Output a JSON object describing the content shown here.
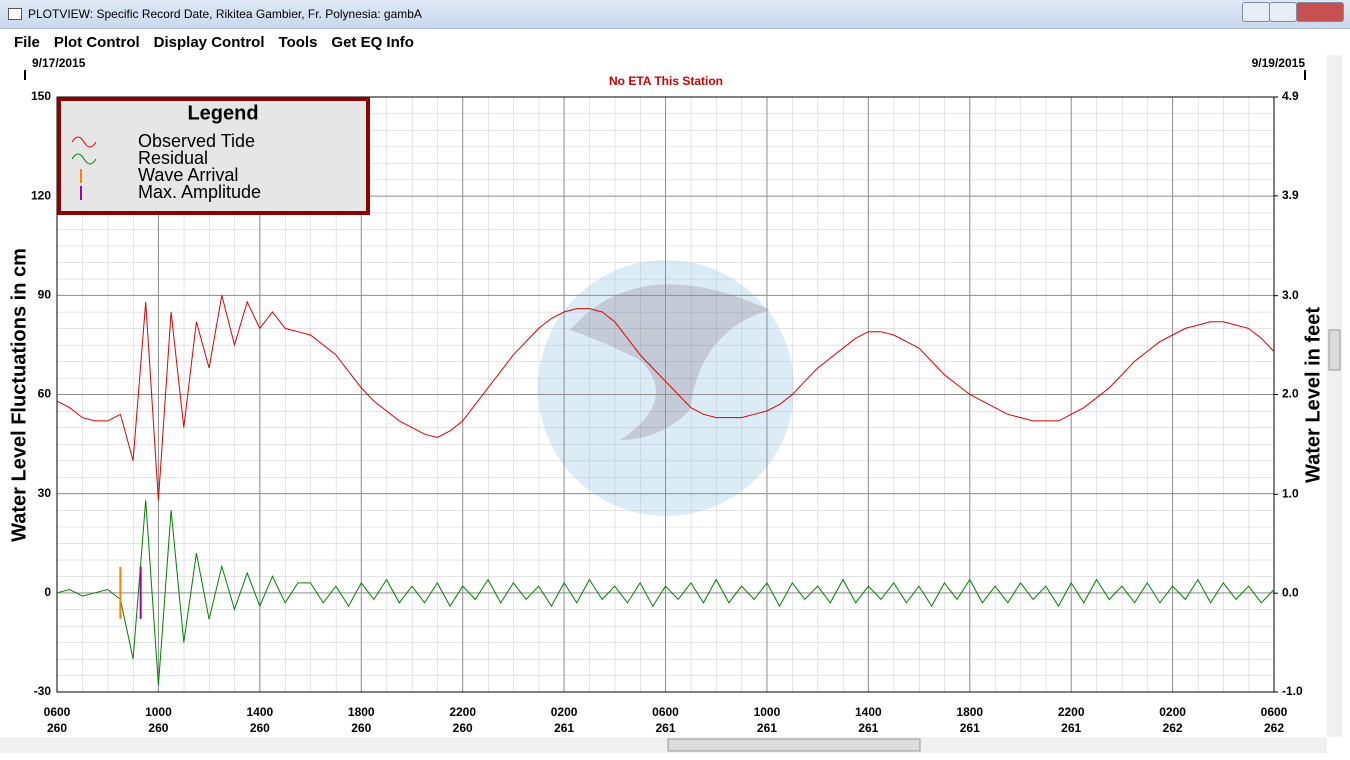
{
  "window": {
    "title": "PLOTVIEW: Specific Record Date, Rikitea Gambier, Fr. Polynesia: gambA",
    "menu": [
      "File",
      "Plot Control",
      "Display Control",
      "Tools",
      "Get EQ Info"
    ]
  },
  "chart_data": {
    "type": "line",
    "start_date": "9/17/2015",
    "end_date": "9/19/2015",
    "annotation": "No ETA This Station",
    "legend_title": "Legend",
    "ylabel": "Water Level Fluctuations in cm",
    "y2label": "Water Level in feet",
    "xlim": [
      0,
      48
    ],
    "xticks": [
      {
        "value": 0,
        "label": "0600",
        "sublabel": "260"
      },
      {
        "value": 4,
        "label": "1000",
        "sublabel": "260"
      },
      {
        "value": 8,
        "label": "1400",
        "sublabel": "260"
      },
      {
        "value": 12,
        "label": "1800",
        "sublabel": "260"
      },
      {
        "value": 16,
        "label": "2200",
        "sublabel": "260"
      },
      {
        "value": 20,
        "label": "0200",
        "sublabel": "261"
      },
      {
        "value": 24,
        "label": "0600",
        "sublabel": "261"
      },
      {
        "value": 28,
        "label": "1000",
        "sublabel": "261"
      },
      {
        "value": 32,
        "label": "1400",
        "sublabel": "261"
      },
      {
        "value": 36,
        "label": "1800",
        "sublabel": "261"
      },
      {
        "value": 40,
        "label": "2200",
        "sublabel": "261"
      },
      {
        "value": 44,
        "label": "0200",
        "sublabel": "262"
      },
      {
        "value": 48,
        "label": "0600",
        "sublabel": "262"
      }
    ],
    "ylim": [
      -30,
      150
    ],
    "yticks": [
      -30,
      0,
      30,
      60,
      90,
      120,
      150
    ],
    "y2lim": [
      -0.98,
      4.92
    ],
    "y2ticks": [
      {
        "value": -0.98,
        "label": "-1.0"
      },
      {
        "value": 0,
        "label": "0.0"
      },
      {
        "value": 0.98,
        "label": "1.0"
      },
      {
        "value": 1.97,
        "label": "2.0"
      },
      {
        "value": 2.95,
        "label": "3.0"
      },
      {
        "value": 3.94,
        "label": "3.9"
      },
      {
        "value": 4.92,
        "label": "4.9"
      }
    ],
    "grid": true,
    "x": [
      0,
      0.5,
      1,
      1.5,
      2,
      2.5,
      3,
      3.5,
      4,
      4.5,
      5,
      5.5,
      6,
      6.5,
      7,
      7.5,
      8,
      8.5,
      9,
      9.5,
      10,
      10.5,
      11,
      11.5,
      12,
      12.5,
      13,
      13.5,
      14,
      14.5,
      15,
      15.5,
      16,
      16.5,
      17,
      17.5,
      18,
      18.5,
      19,
      19.5,
      20,
      20.5,
      21,
      21.5,
      22,
      22.5,
      23,
      23.5,
      24,
      24.5,
      25,
      25.5,
      26,
      26.5,
      27,
      27.5,
      28,
      28.5,
      29,
      29.5,
      30,
      30.5,
      31,
      31.5,
      32,
      32.5,
      33,
      33.5,
      34,
      34.5,
      35,
      35.5,
      36,
      36.5,
      37,
      37.5,
      38,
      38.5,
      39,
      39.5,
      40,
      40.5,
      41,
      41.5,
      42,
      42.5,
      43,
      43.5,
      44,
      44.5,
      45,
      45.5,
      46,
      46.5,
      47,
      47.5,
      48
    ],
    "series": [
      {
        "name": "Observed Tide",
        "color": "#e00000",
        "values": [
          58,
          56,
          53,
          52,
          52,
          54,
          40,
          88,
          28,
          85,
          50,
          82,
          68,
          90,
          75,
          88,
          80,
          85,
          80,
          79,
          78,
          75,
          72,
          67,
          62,
          58,
          55,
          52,
          50,
          48,
          47,
          49,
          52,
          57,
          62,
          67,
          72,
          76,
          80,
          83,
          85,
          86,
          86,
          85,
          82,
          77,
          72,
          68,
          64,
          60,
          56,
          54,
          53,
          53,
          53,
          54,
          55,
          57,
          60,
          64,
          68,
          71,
          74,
          77,
          79,
          79,
          78,
          76,
          74,
          70,
          66,
          63,
          60,
          58,
          56,
          54,
          53,
          52,
          52,
          52,
          54,
          56,
          59,
          62,
          66,
          70,
          73,
          76,
          78,
          80,
          81,
          82,
          82,
          81,
          80,
          77,
          73
        ]
      },
      {
        "name": "Residual",
        "color": "#008000",
        "values": [
          0,
          1,
          -1,
          0,
          1,
          -2,
          -20,
          28,
          -28,
          25,
          -15,
          12,
          -8,
          8,
          -5,
          6,
          -4,
          5,
          -3,
          3,
          3,
          -3,
          2,
          -4,
          3,
          -2,
          4,
          -3,
          2,
          -3,
          3,
          -4,
          2,
          -2,
          4,
          -3,
          3,
          -2,
          2,
          -4,
          3,
          -3,
          4,
          -2,
          2,
          -3,
          3,
          -4,
          2,
          -2,
          3,
          -3,
          4,
          -3,
          2,
          -2,
          3,
          -4,
          3,
          -2,
          2,
          -3,
          4,
          -3,
          2,
          -2,
          3,
          -3,
          2,
          -4,
          3,
          -2,
          4,
          -3,
          2,
          -3,
          3,
          -2,
          2,
          -4,
          3,
          -3,
          4,
          -2,
          2,
          -3,
          3,
          -3,
          2,
          -2,
          4,
          -3,
          3,
          -2,
          2,
          -3,
          1
        ]
      }
    ],
    "markers": [
      {
        "name": "Wave Arrival",
        "color": "#ff8000",
        "x": 2.5
      },
      {
        "name": "Max. Amplitude",
        "color": "#a000a0",
        "x": 3.3
      }
    ]
  }
}
